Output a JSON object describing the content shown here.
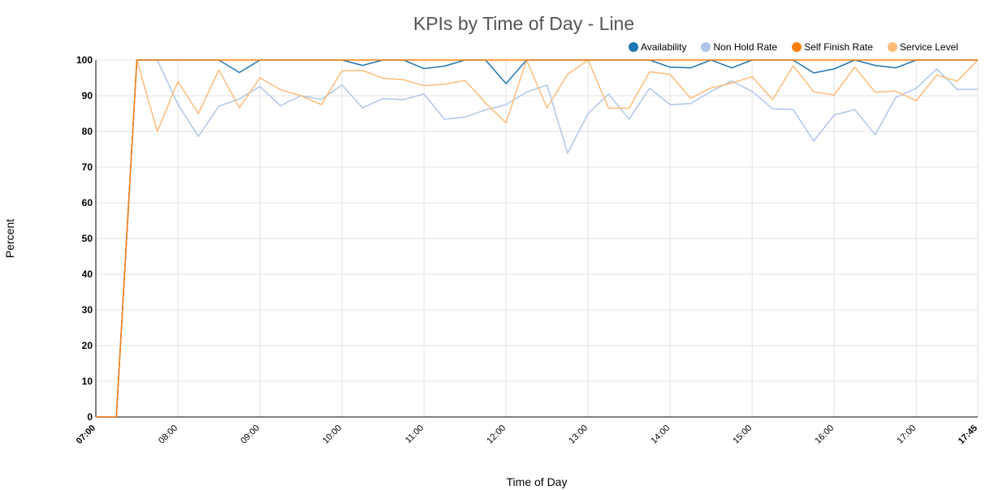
{
  "chart_data": {
    "type": "line",
    "title": "KPIs by Time of Day - Line",
    "xlabel": "Time of Day",
    "ylabel": "Percent",
    "ylim": [
      0,
      100
    ],
    "yticks": [
      "0",
      "10",
      "20",
      "30",
      "40",
      "50",
      "60",
      "70",
      "80",
      "90",
      "100"
    ],
    "xticks": [
      "07:00",
      "08:00",
      "09:00",
      "10:00",
      "11:00",
      "12:00",
      "13:00",
      "14:00",
      "15:00",
      "16:00",
      "17:00",
      "17:45"
    ],
    "xlim": [
      "07:00",
      "17:45"
    ],
    "grid": true,
    "legend_position": "top-right",
    "x": [
      "07:00",
      "07:15",
      "07:30",
      "07:45",
      "08:00",
      "08:15",
      "08:30",
      "08:45",
      "09:00",
      "09:15",
      "09:30",
      "09:45",
      "10:00",
      "10:15",
      "10:30",
      "10:45",
      "11:00",
      "11:15",
      "11:30",
      "11:45",
      "12:00",
      "12:15",
      "12:30",
      "12:45",
      "13:00",
      "13:15",
      "13:30",
      "13:45",
      "14:00",
      "14:15",
      "14:30",
      "14:45",
      "15:00",
      "15:15",
      "15:30",
      "15:45",
      "16:00",
      "16:15",
      "16:30",
      "16:45",
      "17:00",
      "17:15",
      "17:30",
      "17:45"
    ],
    "series": [
      {
        "name": "Availability",
        "color": "#1f77b4",
        "values": [
          0,
          0,
          100,
          100,
          100,
          100,
          100,
          96.5,
          100,
          100,
          100,
          100,
          100,
          98.5,
          100,
          100,
          97.6,
          98.3,
          100,
          100,
          93.4,
          100,
          100,
          100,
          100,
          100,
          100,
          100,
          98,
          97.8,
          100,
          97.8,
          100,
          100,
          100,
          96.4,
          97.5,
          100,
          98.5,
          97.8,
          100,
          100,
          100,
          100
        ]
      },
      {
        "name": "Non Hold Rate",
        "color": "#aec7e8",
        "values": [
          0,
          0,
          100,
          100,
          87.6,
          78.6,
          87.1,
          89.1,
          92.6,
          87.2,
          90,
          89,
          93,
          86.6,
          89.2,
          88.9,
          90.5,
          83.4,
          84,
          86,
          87.5,
          91,
          93,
          73.9,
          85,
          90.5,
          83.4,
          92.1,
          87.5,
          87.8,
          91.2,
          94.1,
          91.2,
          86.3,
          86.1,
          77.3,
          84.6,
          86.1,
          79.1,
          89.5,
          92.1,
          97.5,
          91.8,
          91.8
        ]
      },
      {
        "name": "Self Finish Rate",
        "color": "#ff7f0e",
        "values": [
          0,
          0,
          100,
          100,
          100,
          100,
          100,
          100,
          100,
          100,
          100,
          100,
          100,
          100,
          100,
          100,
          100,
          100,
          100,
          100,
          100,
          100,
          100,
          100,
          100,
          100,
          100,
          100,
          100,
          100,
          100,
          100,
          100,
          100,
          100,
          100,
          100,
          100,
          100,
          100,
          100,
          100,
          100,
          100
        ]
      },
      {
        "name": "Service Level",
        "color": "#ffbb78",
        "values": [
          0,
          0,
          100,
          80,
          94,
          85,
          97.2,
          86.6,
          95,
          91.7,
          90,
          87.5,
          97,
          97.1,
          94.9,
          94.5,
          92.8,
          93.2,
          94.3,
          88,
          82.4,
          100,
          86.6,
          96,
          100,
          86.5,
          86.5,
          96.7,
          96,
          89.3,
          92.2,
          93.5,
          95.3,
          88.9,
          98.4,
          91.1,
          90.2,
          98,
          91,
          91.3,
          88.6,
          95.8,
          94.1,
          100
        ]
      }
    ]
  }
}
